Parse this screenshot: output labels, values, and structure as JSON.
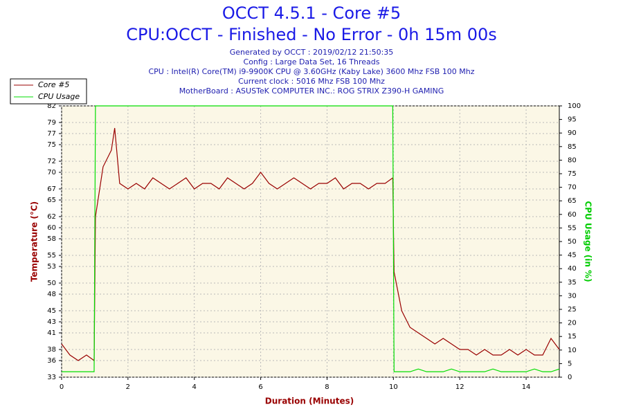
{
  "chart_data": {
    "type": "line",
    "title": "OCCT 4.5.1 - Core #5",
    "subtitle": "CPU:OCCT - Finished - No Error - 0h 15m 00s",
    "info": [
      "Generated by OCCT : 2019/02/12 21:50:35",
      "Config : Large Data Set, 16 Threads",
      "CPU : Intel(R) Core(TM) i9-9900K CPU @ 3.60GHz (Kaby Lake) 3600 Mhz FSB 100 Mhz",
      "Current clock : 5016 Mhz FSB 100 Mhz",
      "MotherBoard : ASUSTeK COMPUTER INC.: ROG STRIX Z390-H GAMING"
    ],
    "x_label": "Duration (Minutes)",
    "y_label": "Temperature (°C)",
    "y2_label": "CPU Usage (in %)",
    "legend": "upper left",
    "grid": true,
    "x": [
      0,
      0.25,
      0.5,
      0.75,
      0.98,
      1.02,
      1.25,
      1.5,
      1.6,
      1.75,
      2,
      2.25,
      2.5,
      2.75,
      3,
      3.25,
      3.5,
      3.75,
      4,
      4.25,
      4.5,
      4.75,
      5,
      5.25,
      5.5,
      5.75,
      6,
      6.25,
      6.5,
      6.75,
      7,
      7.25,
      7.5,
      7.75,
      8,
      8.25,
      8.5,
      8.75,
      9,
      9.25,
      9.5,
      9.75,
      9.98,
      10.02,
      10.25,
      10.5,
      10.75,
      11,
      11.25,
      11.5,
      11.75,
      12,
      12.25,
      12.5,
      12.75,
      13,
      13.25,
      13.5,
      13.75,
      14,
      14.25,
      14.5,
      14.75,
      15
    ],
    "series": [
      {
        "name": "Core #5",
        "color": "#990000",
        "axis": "y",
        "values": [
          39,
          37,
          36,
          37,
          36,
          62,
          71,
          74,
          78,
          68,
          67,
          68,
          67,
          69,
          68,
          67,
          68,
          69,
          67,
          68,
          68,
          67,
          69,
          68,
          67,
          68,
          70,
          68,
          67,
          68,
          69,
          68,
          67,
          68,
          68,
          69,
          67,
          68,
          68,
          67,
          68,
          68,
          69,
          52,
          45,
          42,
          41,
          40,
          39,
          40,
          39,
          38,
          38,
          37,
          38,
          37,
          37,
          38,
          37,
          38,
          37,
          37,
          40,
          38
        ]
      },
      {
        "name": "CPU Usage",
        "color": "#00dd00",
        "axis": "y2",
        "values": [
          2,
          2,
          2,
          2,
          2,
          100,
          100,
          100,
          100,
          100,
          100,
          100,
          100,
          100,
          100,
          100,
          100,
          100,
          100,
          100,
          100,
          100,
          100,
          100,
          100,
          100,
          100,
          100,
          100,
          100,
          100,
          100,
          100,
          100,
          100,
          100,
          100,
          100,
          100,
          100,
          100,
          100,
          100,
          2,
          2,
          2,
          3,
          2,
          2,
          2,
          3,
          2,
          2,
          2,
          2,
          3,
          2,
          2,
          2,
          2,
          3,
          2,
          2,
          3
        ]
      }
    ],
    "xlim": [
      0,
      15
    ],
    "xticks": [
      0,
      2,
      4,
      6,
      8,
      10,
      12,
      14
    ],
    "ylim": [
      33,
      82
    ],
    "yticks": [
      33,
      36,
      38,
      41,
      43,
      45,
      48,
      50,
      53,
      55,
      58,
      60,
      62,
      65,
      67,
      70,
      72,
      75,
      77,
      79,
      82
    ],
    "y2lim": [
      0,
      100
    ],
    "y2ticks": [
      0,
      5,
      10,
      15,
      20,
      25,
      30,
      35,
      40,
      45,
      50,
      55,
      60,
      65,
      70,
      75,
      80,
      85,
      90,
      95,
      100
    ]
  }
}
